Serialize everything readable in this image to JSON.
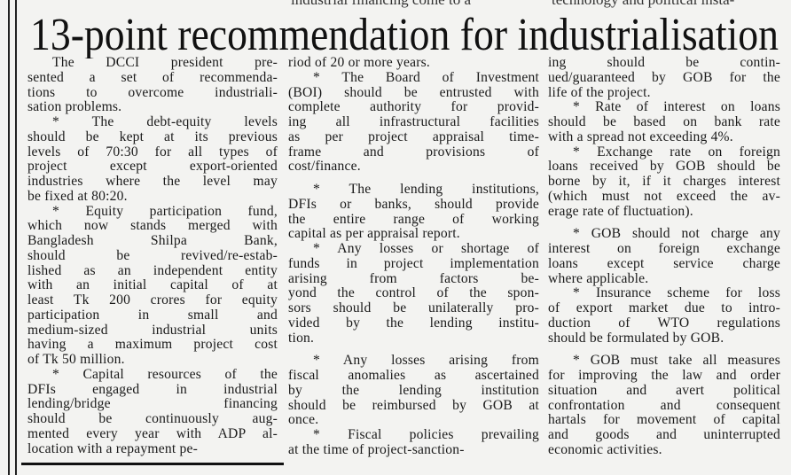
{
  "top_fragments": [
    "industrial financing come to a",
    "technology and political insta-"
  ],
  "headline": "13-point recommendation for industrialisation",
  "columns": [
    {
      "paragraphs": [
        {
          "gap": false,
          "indent": true,
          "lines": [
            "The DCCI president pre-",
            "sented a set of recommenda-",
            "tions to overcome industriali-",
            "sation problems."
          ]
        },
        {
          "gap": false,
          "indent": true,
          "lines": [
            "* The debt-equity levels",
            "should be kept at its previous",
            "levels of 70:30 for all types of",
            "project except export-oriented",
            "industries where the level may",
            "be fixed at 80:20."
          ]
        },
        {
          "gap": false,
          "indent": true,
          "lines": [
            "* Equity participation fund,",
            "which now stands merged with",
            "Bangladesh Shilpa Bank,",
            "should be revived/re-estab-",
            "lished as an independent entity",
            "with an initial capital of at",
            "least Tk 200 crores for equity",
            "participation in small and",
            "medium-sized industrial units",
            "having a maximum project cost",
            "of Tk 50 million."
          ]
        },
        {
          "gap": false,
          "indent": true,
          "lines": [
            "* Capital resources of the",
            "DFIs engaged in industrial",
            "lending/bridge financing",
            "should be continuously aug-",
            "mented every year with ADP al-",
            "location with a repayment pe-"
          ]
        }
      ]
    },
    {
      "paragraphs": [
        {
          "gap": false,
          "indent": false,
          "lines": [
            "riod of 20 or more years."
          ]
        },
        {
          "gap": false,
          "indent": true,
          "lines": [
            "* The Board of Investment",
            "(BOI) should be entrusted with",
            "complete authority for provid-",
            "ing all infrastructural facilities",
            "as per project appraisal time-",
            "frame and provisions of",
            "cost/finance."
          ]
        },
        {
          "gap": true,
          "indent": true,
          "lines": [
            "* The lending institutions,",
            "DFIs or banks, should provide",
            "the entire range of working",
            "capital as per appraisal report."
          ]
        },
        {
          "gap": false,
          "indent": true,
          "lines": [
            "* Any losses or shortage of",
            "funds in project implementation",
            "arising from factors be-",
            "yond the control of the spon-",
            "sors should be unilaterally pro-",
            "vided by the lending institu-",
            "tion."
          ]
        },
        {
          "gap": true,
          "indent": true,
          "lines": [
            "* Any losses arising from",
            "fiscal anomalies as ascertained",
            "by the lending institution",
            "should be reimbursed by GOB at",
            "once."
          ]
        },
        {
          "gap": false,
          "indent": true,
          "lines": [
            "* Fiscal policies prevailing",
            "at the time of project-sanction-"
          ]
        }
      ]
    },
    {
      "paragraphs": [
        {
          "gap": false,
          "indent": false,
          "lines": [
            "ing should be contin-",
            "ued/guaranteed by GOB for the",
            "life of the project."
          ]
        },
        {
          "gap": false,
          "indent": true,
          "lines": [
            "* Rate of interest on loans",
            "should be based on bank rate",
            "with a spread not exceeding 4%."
          ]
        },
        {
          "gap": false,
          "indent": true,
          "lines": [
            "* Exchange rate on foreign",
            "loans received by GOB should be",
            "borne by it, if it charges interest",
            "(which must not exceed the av-",
            "erage rate of fluctuation)."
          ]
        },
        {
          "gap": true,
          "indent": true,
          "lines": [
            "* GOB should not charge any",
            "interest on foreign exchange",
            "loans except service charge",
            "where applicable."
          ]
        },
        {
          "gap": false,
          "indent": true,
          "lines": [
            "* Insurance scheme for loss",
            "of export market due to intro-",
            "duction of WTO regulations",
            "should be formulated by GOB."
          ]
        },
        {
          "gap": true,
          "indent": true,
          "lines": [
            "* GOB must take all measures",
            "for improving the law and order",
            "situation and avert political",
            "confrontation and consequent",
            "hartals for movement of capital",
            "and goods and uninterrupted",
            "economic activities."
          ]
        }
      ]
    }
  ]
}
